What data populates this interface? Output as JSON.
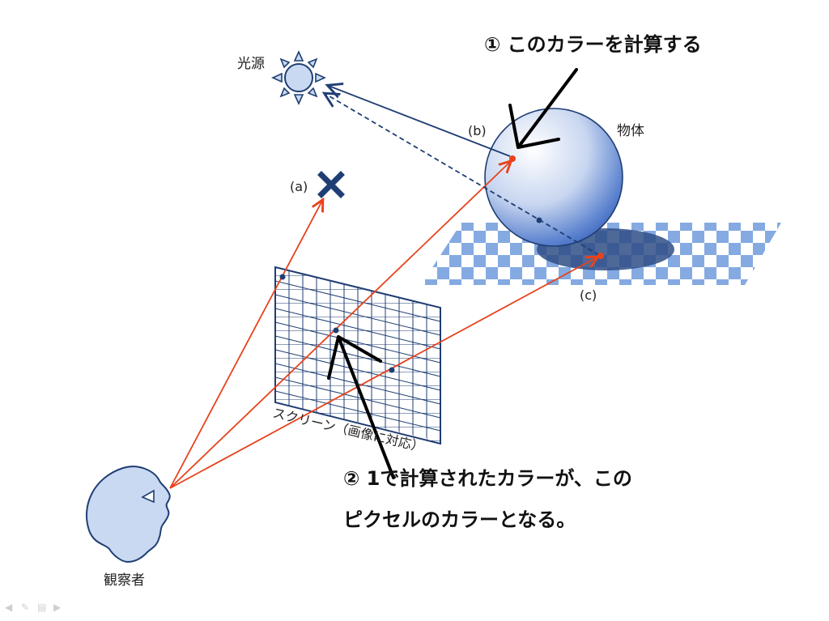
{
  "labels": {
    "light": "光源",
    "object": "物体",
    "point_a": "(a)",
    "point_b": "(b)",
    "point_c": "(c)",
    "screen": "スクリーン（画像に対応）",
    "observer": "観察者"
  },
  "notes": {
    "step1": "① このカラーを計算する",
    "step2_line1": "② 1で計算されたカラーが、この",
    "step2_line2": "ピクセルのカラーとなる。"
  },
  "colors": {
    "ray": "#e8421c",
    "navy": "#1f3e73",
    "light_blue": "#c9d9f2",
    "checker": "#7fa6e0"
  },
  "nav_icons": [
    "prev-arrow-icon",
    "pen-icon",
    "menu-icon",
    "next-arrow-icon"
  ]
}
